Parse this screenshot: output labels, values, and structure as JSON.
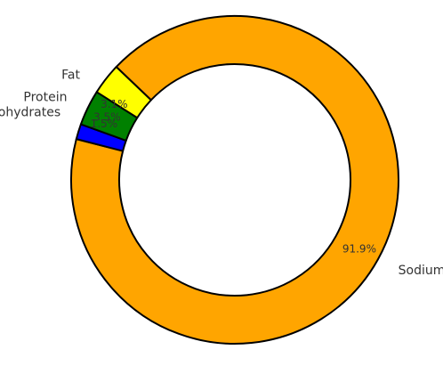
{
  "chart_data": {
    "type": "pie",
    "variant": "donut",
    "title": "",
    "categories": [
      "Sodium",
      "Carbohydrates",
      "Protein",
      "Fat"
    ],
    "values": [
      91.9,
      1.5,
      3.5,
      3.1
    ],
    "labels": [
      "91.9%",
      "1.5%",
      "3.5%",
      "3.1%"
    ],
    "colors": [
      "#FFA500",
      "#0000FF",
      "#008000",
      "#FFFF00"
    ],
    "edge_color": "#000000",
    "legend": "none"
  }
}
